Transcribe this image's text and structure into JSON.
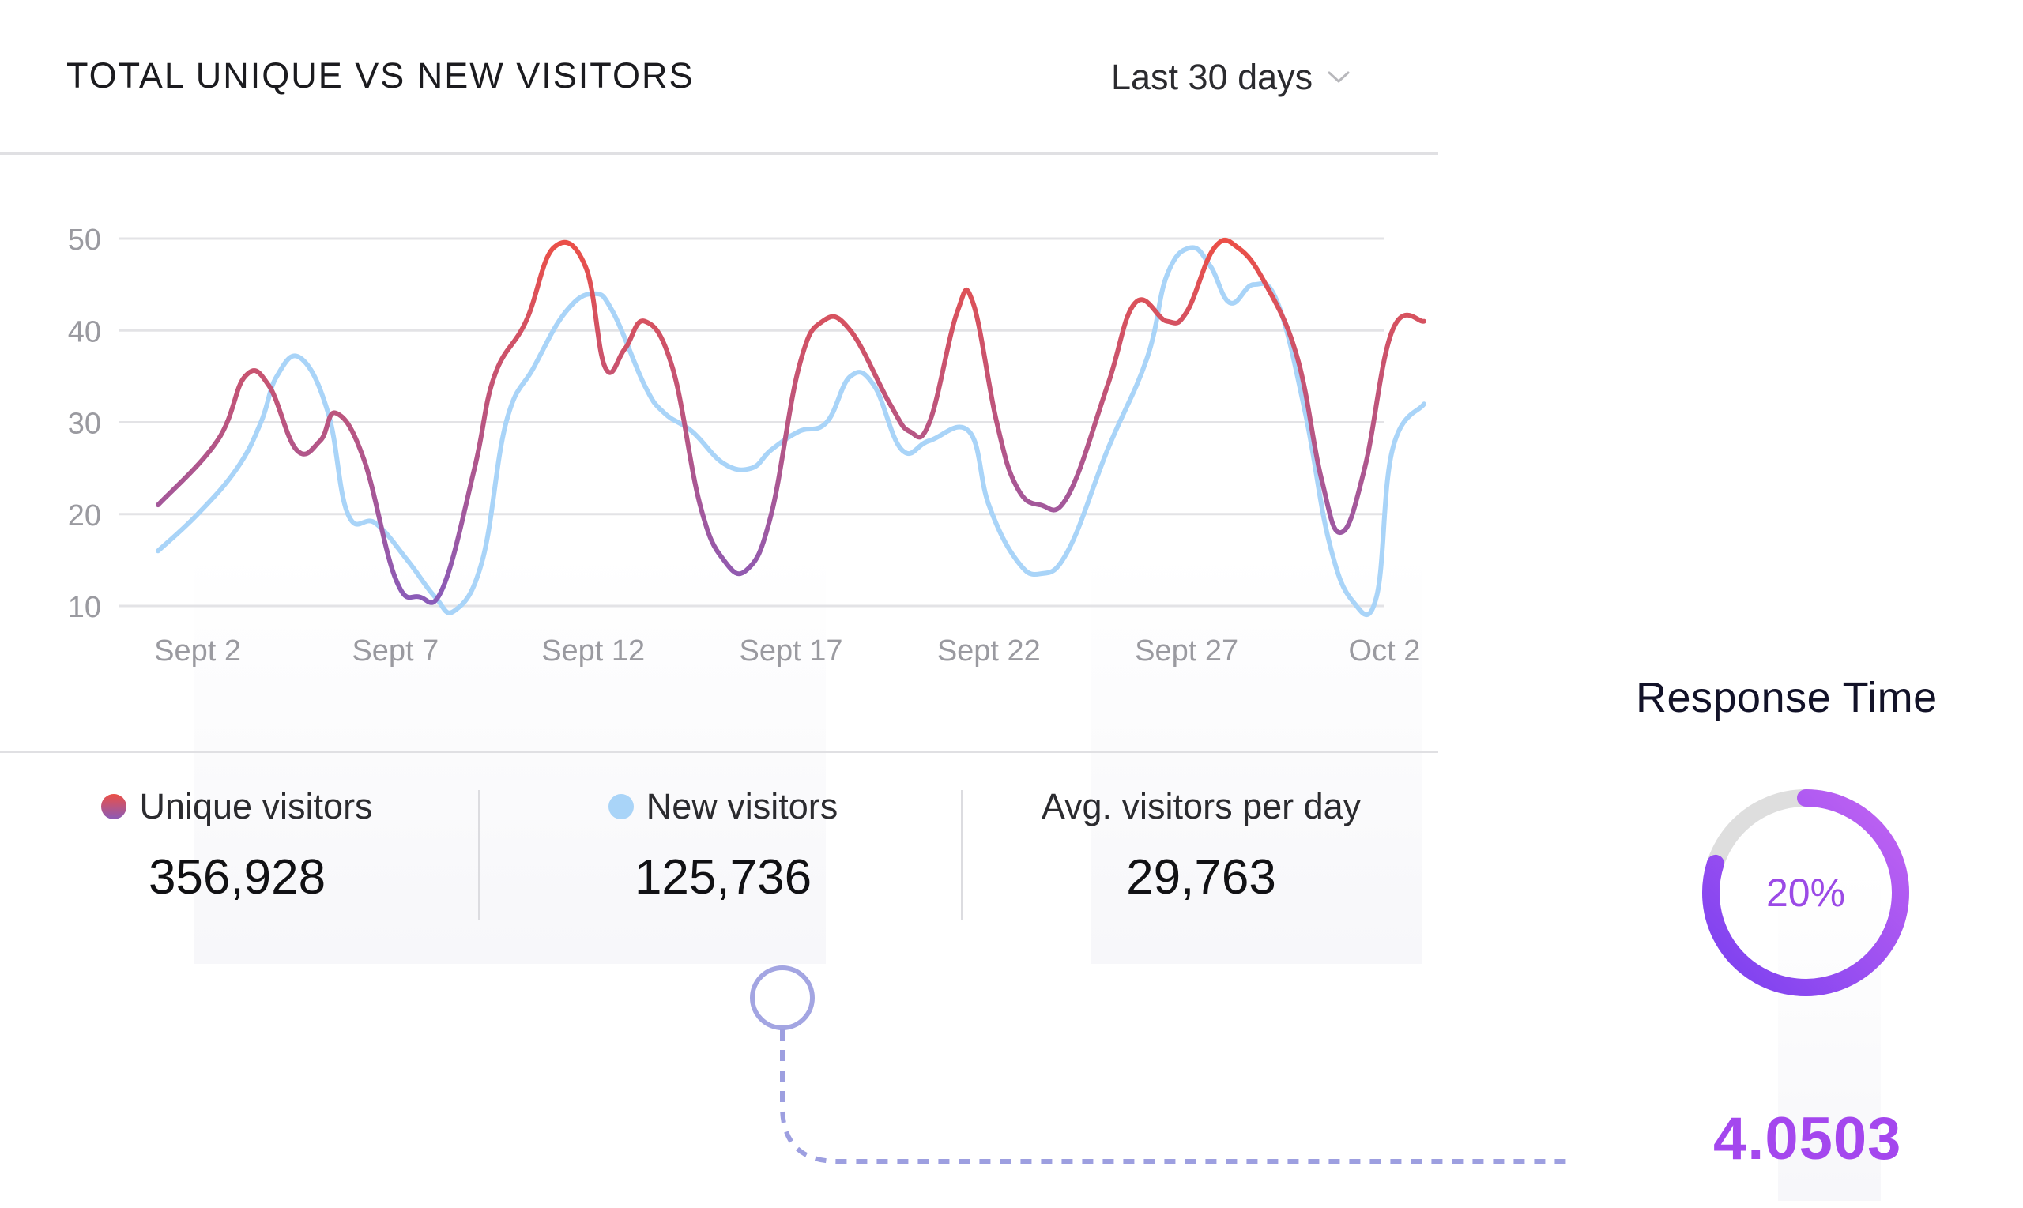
{
  "card": {
    "title": "TOTAL UNIQUE VS NEW VISITORS",
    "range_label": "Last 30 days"
  },
  "stats": {
    "unique_label": "Unique visitors",
    "unique_value": "356,928",
    "new_label": "New visitors",
    "new_value": "125,736",
    "avg_label": "Avg. visitors per day",
    "avg_value": "29,763"
  },
  "response": {
    "title": "Response Time",
    "percent_label": "20%",
    "percent_value": 0.2,
    "value": "4.0503"
  },
  "colors": {
    "unique_start": "#ec4f46",
    "unique_end": "#8a5bb8",
    "new_visitors": "#a9d4f8",
    "gauge_start": "#7a3ff0",
    "gauge_end": "#c264f2",
    "gauge_track": "#dedede",
    "connector": "#9d9fe0"
  },
  "chart_data": {
    "type": "line",
    "title": "TOTAL UNIQUE VS NEW VISITORS",
    "xlabel": "",
    "ylabel": "",
    "x_ticks": [
      "Sept 2",
      "Sept 7",
      "Sept 12",
      "Sept 17",
      "Sept 22",
      "Sept 27",
      "Oct 2"
    ],
    "y_ticks": [
      10,
      20,
      30,
      40,
      50
    ],
    "ylim": [
      10,
      50
    ],
    "xlim": [
      1,
      33
    ],
    "grid": true,
    "legend": "bottom",
    "series": [
      {
        "name": "Unique visitors",
        "points": [
          [
            1,
            21
          ],
          [
            2.5,
            28
          ],
          [
            3.2,
            35
          ],
          [
            3.8,
            34
          ],
          [
            4.5,
            27
          ],
          [
            5.1,
            28
          ],
          [
            5.5,
            31
          ],
          [
            6.2,
            26
          ],
          [
            7,
            13
          ],
          [
            7.6,
            11
          ],
          [
            8.2,
            12
          ],
          [
            9,
            25
          ],
          [
            9.5,
            35
          ],
          [
            10.3,
            41
          ],
          [
            11,
            49
          ],
          [
            11.8,
            47
          ],
          [
            12.3,
            36
          ],
          [
            12.8,
            38
          ],
          [
            13.3,
            41
          ],
          [
            14,
            36
          ],
          [
            14.7,
            21
          ],
          [
            15.3,
            15
          ],
          [
            15.9,
            14
          ],
          [
            16.5,
            20
          ],
          [
            17.2,
            36
          ],
          [
            17.8,
            41
          ],
          [
            18.5,
            40
          ],
          [
            19.5,
            32
          ],
          [
            20,
            29
          ],
          [
            20.5,
            30
          ],
          [
            21.2,
            42
          ],
          [
            21.6,
            43
          ],
          [
            22.2,
            30
          ],
          [
            22.7,
            23
          ],
          [
            23.3,
            21
          ],
          [
            24,
            22
          ],
          [
            25,
            34
          ],
          [
            25.7,
            43
          ],
          [
            26.5,
            41
          ],
          [
            27,
            42
          ],
          [
            27.7,
            49
          ],
          [
            28.3,
            49
          ],
          [
            29,
            45
          ],
          [
            29.8,
            37
          ],
          [
            30.4,
            24
          ],
          [
            30.9,
            18
          ],
          [
            31.5,
            25
          ],
          [
            32.2,
            40
          ],
          [
            33,
            41
          ]
        ]
      },
      {
        "name": "New visitors",
        "points": [
          [
            1,
            16
          ],
          [
            2,
            20
          ],
          [
            3,
            25
          ],
          [
            3.6,
            30
          ],
          [
            4,
            35
          ],
          [
            4.6,
            37
          ],
          [
            5.3,
            31
          ],
          [
            5.8,
            20
          ],
          [
            6.5,
            19
          ],
          [
            7.3,
            15
          ],
          [
            8,
            11
          ],
          [
            8.5,
            9.5
          ],
          [
            9.2,
            15
          ],
          [
            9.8,
            30
          ],
          [
            10.5,
            36
          ],
          [
            11.3,
            42
          ],
          [
            12,
            44
          ],
          [
            12.5,
            42
          ],
          [
            13.3,
            34
          ],
          [
            13.8,
            31
          ],
          [
            14.5,
            29
          ],
          [
            15.3,
            25.5
          ],
          [
            16,
            25
          ],
          [
            16.5,
            27
          ],
          [
            17.2,
            29
          ],
          [
            17.9,
            30
          ],
          [
            18.5,
            35
          ],
          [
            19.1,
            34
          ],
          [
            19.8,
            27
          ],
          [
            20.5,
            28
          ],
          [
            21.5,
            29
          ],
          [
            22,
            21
          ],
          [
            22.7,
            15
          ],
          [
            23.3,
            13.5
          ],
          [
            24,
            16
          ],
          [
            25,
            27
          ],
          [
            26,
            37
          ],
          [
            26.5,
            46
          ],
          [
            27.1,
            49
          ],
          [
            27.6,
            47
          ],
          [
            28.1,
            43
          ],
          [
            28.7,
            45
          ],
          [
            29.3,
            43
          ],
          [
            30,
            31
          ],
          [
            30.6,
            17
          ],
          [
            31.2,
            10.5
          ],
          [
            31.8,
            11
          ],
          [
            32.2,
            27
          ],
          [
            33,
            32
          ]
        ]
      }
    ]
  }
}
